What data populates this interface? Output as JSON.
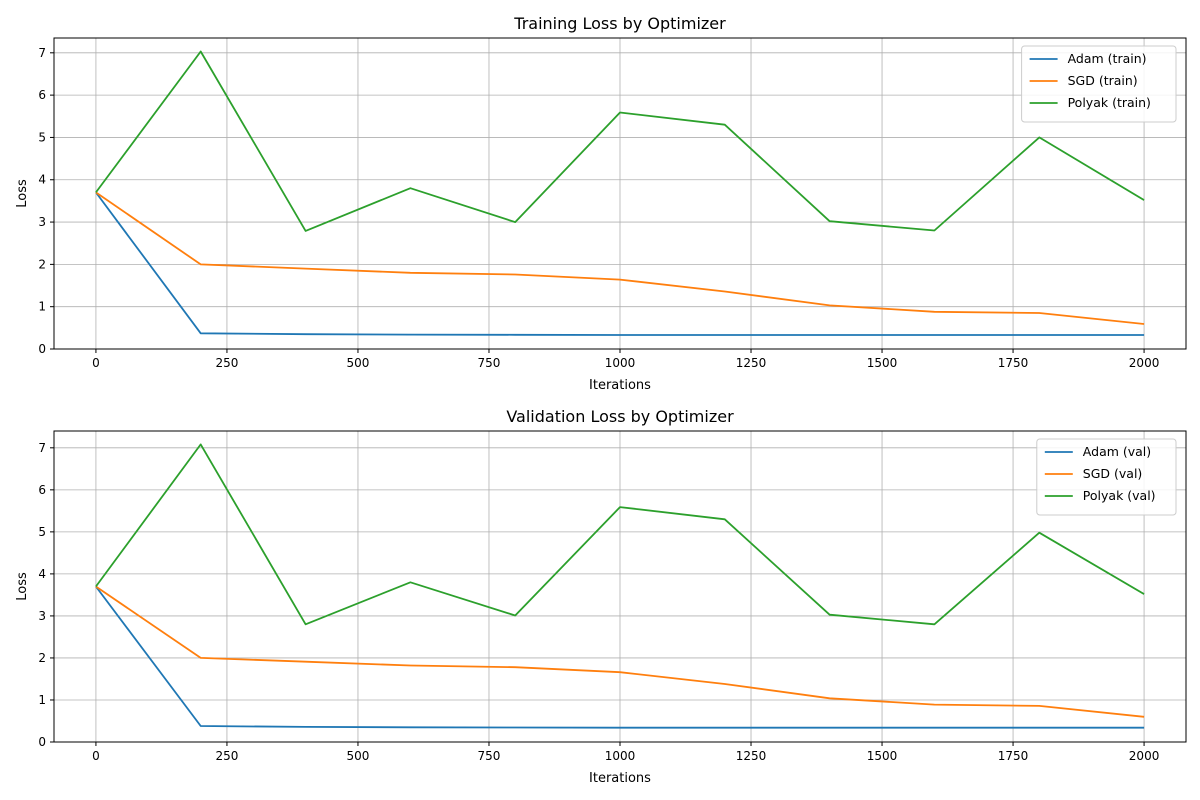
{
  "chart_data": [
    {
      "type": "line",
      "title": "Training Loss by Optimizer",
      "xlabel": "Iterations",
      "ylabel": "Loss",
      "xlim": [
        -80,
        2080
      ],
      "ylim": [
        0,
        7.35
      ],
      "xticks": [
        0,
        250,
        500,
        750,
        1000,
        1250,
        1500,
        1750,
        2000
      ],
      "yticks": [
        0,
        1,
        2,
        3,
        4,
        5,
        6,
        7
      ],
      "grid": true,
      "legend_position": "top-right",
      "x": [
        0,
        200,
        400,
        600,
        800,
        1000,
        1200,
        1400,
        1600,
        1800,
        2000
      ],
      "series": [
        {
          "name": "Adam (train)",
          "color": "#1f77b4",
          "values": [
            3.7,
            0.37,
            0.35,
            0.34,
            0.335,
            0.33,
            0.33,
            0.33,
            0.33,
            0.33,
            0.33
          ]
        },
        {
          "name": "SGD (train)",
          "color": "#ff7f0e",
          "values": [
            3.7,
            2.0,
            1.9,
            1.8,
            1.76,
            1.64,
            1.36,
            1.03,
            0.88,
            0.85,
            0.59
          ]
        },
        {
          "name": "Polyak (train)",
          "color": "#2ca02c",
          "values": [
            3.7,
            7.03,
            2.79,
            3.8,
            3.0,
            5.59,
            5.3,
            3.02,
            2.8,
            5.0,
            3.52
          ]
        }
      ]
    },
    {
      "type": "line",
      "title": "Validation Loss by Optimizer",
      "xlabel": "Iterations",
      "ylabel": "Loss",
      "xlim": [
        -80,
        2080
      ],
      "ylim": [
        0,
        7.4
      ],
      "xticks": [
        0,
        250,
        500,
        750,
        1000,
        1250,
        1500,
        1750,
        2000
      ],
      "yticks": [
        0,
        1,
        2,
        3,
        4,
        5,
        6,
        7
      ],
      "grid": true,
      "legend_position": "top-right",
      "x": [
        0,
        200,
        400,
        600,
        800,
        1000,
        1200,
        1400,
        1600,
        1800,
        2000
      ],
      "series": [
        {
          "name": "Adam (val)",
          "color": "#1f77b4",
          "values": [
            3.7,
            0.38,
            0.36,
            0.35,
            0.345,
            0.34,
            0.34,
            0.34,
            0.34,
            0.34,
            0.34
          ]
        },
        {
          "name": "SGD (val)",
          "color": "#ff7f0e",
          "values": [
            3.7,
            2.0,
            1.91,
            1.82,
            1.78,
            1.66,
            1.38,
            1.04,
            0.89,
            0.86,
            0.6
          ]
        },
        {
          "name": "Polyak (val)",
          "color": "#2ca02c",
          "values": [
            3.7,
            7.08,
            2.8,
            3.8,
            3.01,
            5.59,
            5.3,
            3.03,
            2.8,
            4.98,
            3.52
          ]
        }
      ]
    }
  ]
}
